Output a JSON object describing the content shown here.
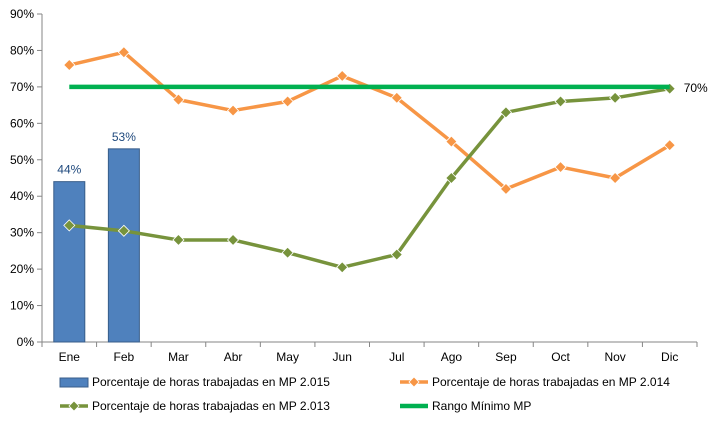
{
  "chart_data": {
    "type": "bar",
    "categories": [
      "Ene",
      "Feb",
      "Mar",
      "Abr",
      "May",
      "Jun",
      "Jul",
      "Ago",
      "Sep",
      "Oct",
      "Nov",
      "Dic"
    ],
    "y_ticks": [
      "0%",
      "10%",
      "20%",
      "30%",
      "40%",
      "50%",
      "60%",
      "70%",
      "80%",
      "90%"
    ],
    "ylim": [
      0,
      90
    ],
    "grid": false,
    "legend_position": "bottom",
    "series": [
      {
        "name": "Porcentaje de horas trabajadas en MP 2.015",
        "kind": "bar",
        "color": "#4f81bd",
        "values": [
          44,
          53,
          null,
          null,
          null,
          null,
          null,
          null,
          null,
          null,
          null,
          null
        ],
        "data_labels": [
          "44%",
          "53%"
        ],
        "data_label_color": "#1f497d"
      },
      {
        "name": "Porcentaje de horas trabajadas en MP 2.014",
        "kind": "line",
        "marker": "diamond",
        "color": "#f79646",
        "values": [
          76,
          79.5,
          66.5,
          63.5,
          66,
          73,
          67,
          55,
          42,
          48,
          45,
          54
        ]
      },
      {
        "name": "Porcentaje de horas trabajadas en MP 2.013",
        "kind": "line",
        "marker": "diamond",
        "color": "#77933c",
        "values": [
          32,
          30.5,
          28,
          28,
          24.5,
          20.5,
          24,
          45,
          63,
          66,
          67,
          69.5
        ]
      },
      {
        "name": "Rango Mínimo MP",
        "kind": "line",
        "marker": "none",
        "color": "#00b050",
        "values": [
          70,
          70,
          70,
          70,
          70,
          70,
          70,
          70,
          70,
          70,
          70,
          70
        ],
        "end_label": "70%"
      }
    ]
  }
}
